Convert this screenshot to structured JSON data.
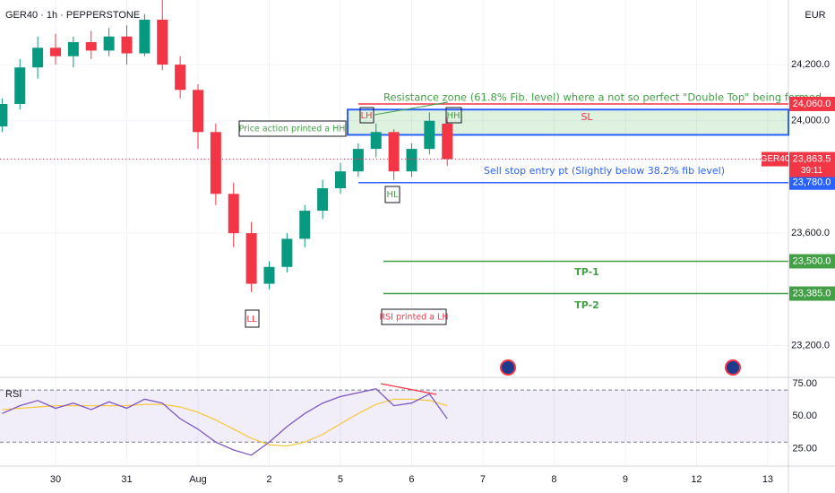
{
  "chart_data": [
    {
      "type": "candlestick",
      "title": "GER40 · 1h · PEPPERSTONE",
      "currency": "EUR",
      "x": [
        -0.75,
        -0.5,
        -0.25,
        0,
        0.25,
        0.5,
        0.75,
        1,
        1.25,
        1.5,
        1.75,
        2,
        2.25,
        2.5,
        2.75,
        3,
        3.25,
        3.5,
        3.75,
        4,
        4.25,
        4.5,
        4.75,
        5,
        5.25,
        5.5
      ],
      "open": [
        23980,
        24060,
        24190,
        24260,
        24230,
        24280,
        24250,
        24300,
        24240,
        24360,
        24200,
        24110,
        23960,
        23740,
        23600,
        23420,
        23480,
        23580,
        23680,
        23760,
        23820,
        23900,
        23960,
        23820,
        23900,
        23990
      ],
      "high": [
        24080,
        24220,
        24300,
        24310,
        24300,
        24320,
        24330,
        24340,
        24380,
        24430,
        24230,
        24130,
        23990,
        23780,
        23640,
        23500,
        23600,
        23700,
        23790,
        23850,
        23920,
        23990,
        23970,
        23920,
        24030,
        24010
      ],
      "low": [
        23960,
        24040,
        24150,
        24200,
        24190,
        24220,
        24230,
        24200,
        24230,
        24180,
        24080,
        23900,
        23700,
        23550,
        23390,
        23400,
        23460,
        23550,
        23650,
        23740,
        23800,
        23870,
        23790,
        23800,
        23880,
        23840
      ],
      "close": [
        24060,
        24190,
        24260,
        24230,
        24280,
        24250,
        24300,
        24240,
        24360,
        24200,
        24110,
        23960,
        23740,
        23600,
        23420,
        23480,
        23580,
        23680,
        23760,
        23820,
        23900,
        23960,
        23820,
        23900,
        24000,
        23864
      ],
      "up_color": "#089981",
      "down_color": "#f23645",
      "xlim": [
        -0.78,
        10.29
      ],
      "ylim": [
        23090,
        24430
      ],
      "xticks": [
        {
          "value": 0,
          "label": "30"
        },
        {
          "value": 1,
          "label": "31"
        },
        {
          "value": 2,
          "label": "Aug"
        },
        {
          "value": 3,
          "label": "2"
        },
        {
          "value": 4,
          "label": "5"
        },
        {
          "value": 5,
          "label": "6"
        },
        {
          "value": 6,
          "label": "7"
        },
        {
          "value": 7,
          "label": "8"
        },
        {
          "value": 8,
          "label": "9"
        },
        {
          "value": 9,
          "label": "12"
        },
        {
          "value": 10,
          "label": "13"
        }
      ],
      "yticks": [
        {
          "value": 23200,
          "label": "23,200.0"
        },
        {
          "value": 23600,
          "label": "23,600.0"
        },
        {
          "value": 24000,
          "label": "24,000.0"
        },
        {
          "value": 24200,
          "label": "24,200.0"
        }
      ],
      "levels": [
        {
          "value": 24060,
          "label": "24,060.0",
          "color": "#f23645"
        },
        {
          "value": 23780,
          "label": "23,780.0",
          "color": "#2962ff"
        },
        {
          "value": 23500,
          "label": "23,500.0",
          "color": "#43a047"
        },
        {
          "value": 23385,
          "label": "23,385.0",
          "color": "#43a047"
        }
      ],
      "last": {
        "value": 23863.5,
        "label": "23,863.5",
        "symbol": "GER40",
        "countdown": "39:11"
      },
      "zone": {
        "top": 24040,
        "bottom": 23950
      },
      "annotations": {
        "resistance": "Resistance zone (61.8% Fib. level) where a not so perfect \"Double Top\" being formed",
        "entry": "Sell stop entry pt (Slightly below 38.2% fib level)",
        "price_hh": "Price action printed a HH",
        "rsi_lh": "RSI printed a LH",
        "lh": "LH",
        "hh": "HH",
        "hl": "HL",
        "ll": "LL",
        "sl": "SL",
        "tp1": "TP-1",
        "tp2": "TP-2"
      }
    },
    {
      "type": "line",
      "title": "RSI",
      "ylim": [
        13,
        77
      ],
      "bands": [
        30,
        70
      ],
      "yticks": [
        {
          "value": 75,
          "label": "75.00"
        },
        {
          "value": 50,
          "label": "50.00"
        },
        {
          "value": 25,
          "label": "25.00"
        }
      ],
      "series": [
        {
          "name": "RSI",
          "color": "#7e57c2",
          "values": [
            52,
            58,
            62,
            56,
            60,
            55,
            61,
            56,
            63,
            60,
            48,
            40,
            30,
            24,
            20,
            30,
            42,
            52,
            60,
            65,
            68,
            71,
            58,
            60,
            67,
            48
          ]
        },
        {
          "color": "#f7c948",
          "values": [
            55,
            56,
            57,
            58,
            58,
            58,
            58,
            58,
            59,
            59,
            57,
            53,
            47,
            40,
            33,
            28,
            27,
            30,
            36,
            44,
            52,
            59,
            63,
            63,
            62,
            58
          ]
        }
      ]
    }
  ]
}
